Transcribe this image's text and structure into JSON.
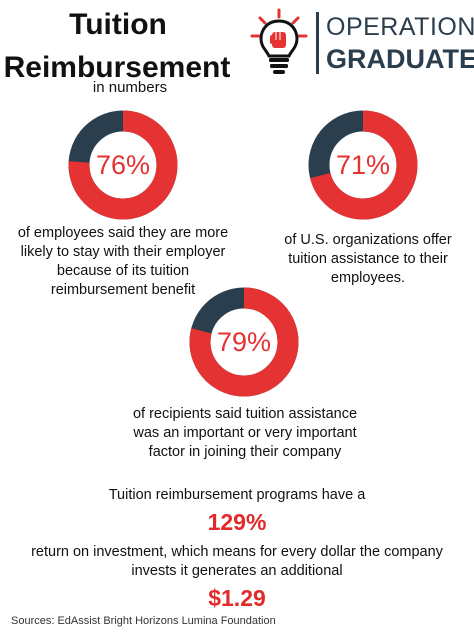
{
  "header": {
    "title_line1": "Tuition",
    "title_line2": "Reimbursement",
    "subtitle": "in numbers"
  },
  "logo": {
    "icon": "lightbulb-fist-icon",
    "line1": "OPERATION",
    "line2": "GRADUATE"
  },
  "colors": {
    "red": "#e53232",
    "navy": "#2b3e4e"
  },
  "stats": [
    {
      "value": 76,
      "label": "76%",
      "caption_lines": [
        "of employees said they are more",
        "likely to stay with their employer",
        "because of its tuition",
        "reimbursement benefit"
      ]
    },
    {
      "value": 71,
      "label": "71%",
      "caption_lines": [
        "of U.S. organizations offer",
        "tuition assistance to their",
        "employees."
      ]
    },
    {
      "value": 79,
      "label": "79%",
      "caption_lines": [
        "of recipients said tuition assistance",
        "was an important or very important",
        "factor in joining their company"
      ]
    }
  ],
  "roi": {
    "intro": "Tuition reimbursement programs have a",
    "value": "129%",
    "line2": "return on investment, which means for every dollar the company",
    "line3": "invests it generates an additional",
    "dollar": "$1.29"
  },
  "footer": {
    "sources": "Sources: EdAssist Bright Horizons Lumina Foundation"
  }
}
